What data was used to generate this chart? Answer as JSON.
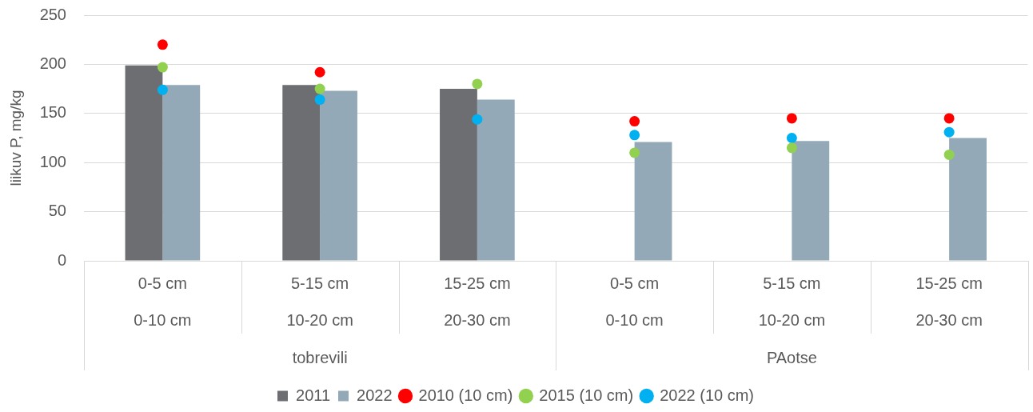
{
  "chart_data": {
    "type": "bar",
    "categories": [
      "0-5 cm\n0-10 cm",
      "5-15 cm\n10-20 cm",
      "15-25 cm\n20-30 cm",
      "0-5 cm\n0-10 cm",
      "5-15 cm\n10-20 cm",
      "15-25 cm\n20-30 cm"
    ],
    "annotations": [
      "tobrevili",
      "PAotse"
    ],
    "ylabel": "liikuv P, mg/kg",
    "series": [
      {
        "name": "2011",
        "color": "#6d6e72",
        "values": [
          199,
          179,
          175,
          null,
          null,
          null
        ]
      },
      {
        "name": "2022",
        "color": "#93a9b8",
        "values": [
          179,
          173,
          164,
          121,
          122,
          125
        ]
      },
      {
        "name": "2010 (10 cm)",
        "type": "scatter",
        "color": "#ff0000",
        "values": [
          220,
          192,
          null,
          142,
          145,
          145
        ]
      },
      {
        "name": "2015 (10 cm)",
        "type": "scatter",
        "color": "#92d050",
        "values": [
          197,
          175,
          180,
          110,
          115,
          108
        ]
      },
      {
        "name": "2022 (10 cm)",
        "type": "scatter",
        "color": "#00b0f0",
        "values": [
          174,
          164,
          144,
          128,
          125,
          131
        ]
      }
    ],
    "ylim": [
      0,
      250
    ],
    "yticks": [
      0,
      50,
      100,
      150,
      200,
      250
    ],
    "grid": "y",
    "legend": "bottom",
    "marker": "circle"
  }
}
